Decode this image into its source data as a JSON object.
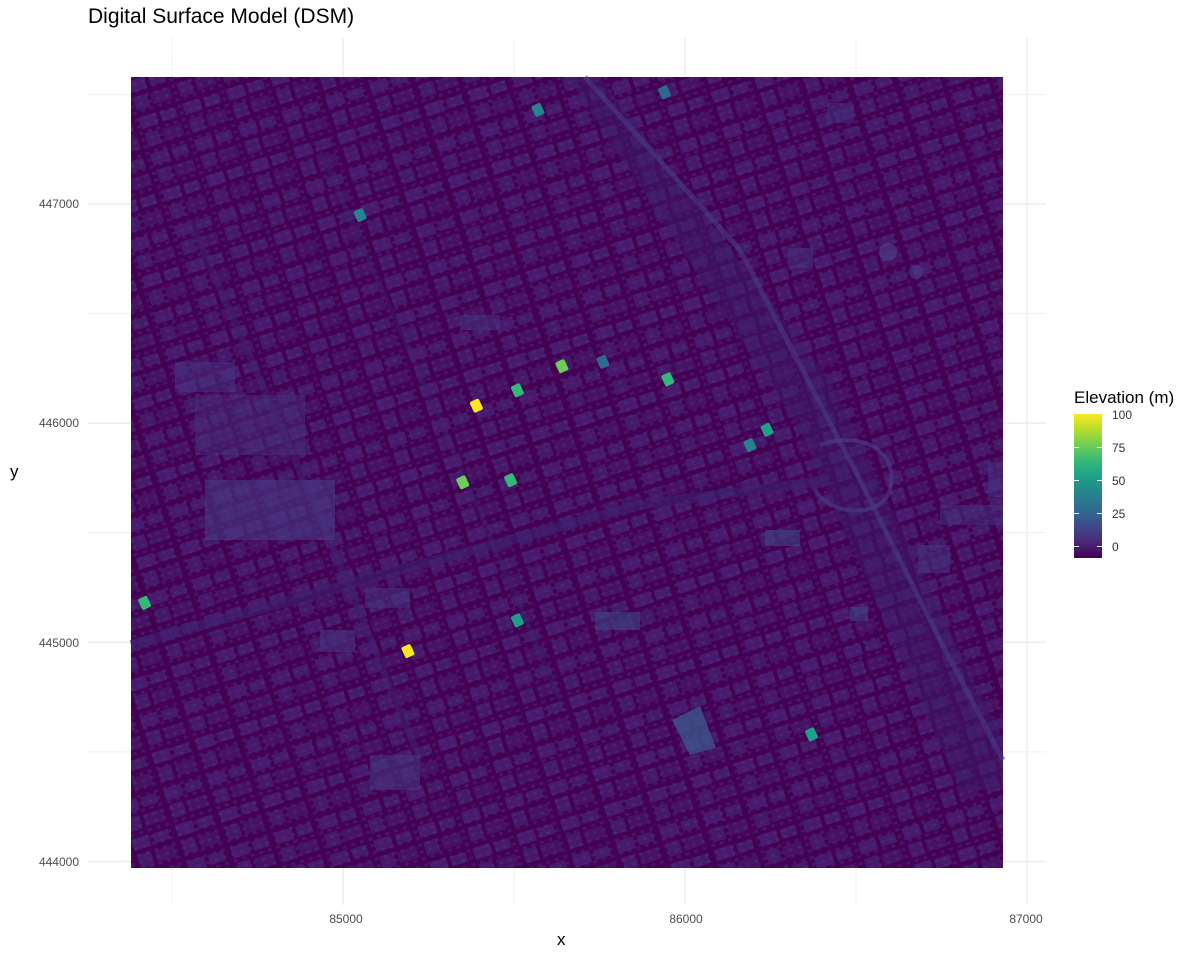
{
  "plot": {
    "title": "Digital Surface Model (DSM)",
    "xlabel": "x",
    "ylabel": "y",
    "x_ticks": [
      "85000",
      "86000",
      "87000"
    ],
    "y_ticks": [
      "444000",
      "445000",
      "446000",
      "447000"
    ]
  },
  "legend": {
    "title": "Elevation (m)",
    "ticks": [
      "0",
      "25",
      "50",
      "75",
      "100"
    ]
  },
  "colors": {
    "background": "#440154",
    "palette": [
      "#440154",
      "#482878",
      "#3e4a89",
      "#31688e",
      "#26828e",
      "#1f9e89",
      "#35b779",
      "#6dcd59",
      "#b4de2c",
      "#fde725"
    ],
    "grid": "#ebebeb"
  },
  "chart_data": {
    "type": "heatmap",
    "title": "Digital Surface Model (DSM)",
    "xlabel": "x",
    "ylabel": "y",
    "xlim": [
      84380,
      86930
    ],
    "ylim": [
      443970,
      447580
    ],
    "x_breaks": [
      85000,
      86000,
      87000
    ],
    "y_breaks": [
      444000,
      445000,
      446000,
      447000
    ],
    "fill_scale": "viridis",
    "fill_label": "Elevation (m)",
    "fill_limits": [
      -5,
      100
    ],
    "fill_breaks": [
      0,
      25,
      50,
      75,
      100
    ],
    "grid": true,
    "legend_position": "right",
    "notable_features": [
      {
        "x": 85390,
        "y": 446080,
        "elevation": 98
      },
      {
        "x": 85640,
        "y": 446260,
        "elevation": 80
      },
      {
        "x": 85510,
        "y": 446150,
        "elevation": 60
      },
      {
        "x": 85490,
        "y": 445740,
        "elevation": 70
      },
      {
        "x": 85350,
        "y": 445730,
        "elevation": 75
      },
      {
        "x": 85950,
        "y": 446200,
        "elevation": 60
      },
      {
        "x": 86240,
        "y": 445970,
        "elevation": 55
      },
      {
        "x": 85190,
        "y": 444960,
        "elevation": 100
      },
      {
        "x": 84420,
        "y": 445180,
        "elevation": 70
      },
      {
        "x": 85510,
        "y": 445100,
        "elevation": 55
      },
      {
        "x": 86370,
        "y": 444580,
        "elevation": 55
      },
      {
        "x": 85050,
        "y": 446950,
        "elevation": 40
      },
      {
        "x": 85570,
        "y": 447430,
        "elevation": 45
      },
      {
        "x": 85940,
        "y": 447510,
        "elevation": 35
      },
      {
        "x": 86190,
        "y": 445900,
        "elevation": 40
      },
      {
        "x": 85760,
        "y": 446280,
        "elevation": 35
      }
    ]
  }
}
